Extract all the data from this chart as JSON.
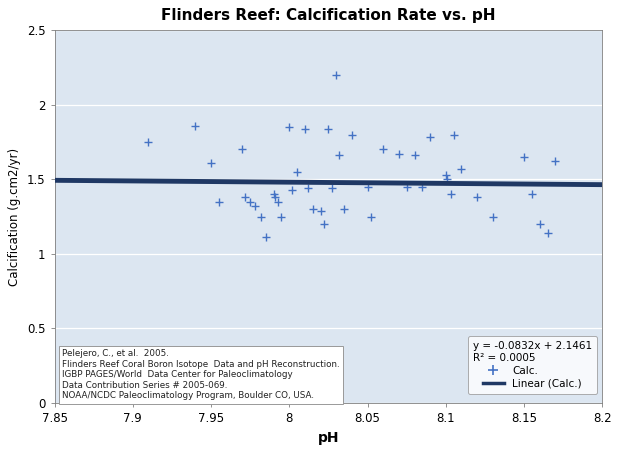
{
  "title": "Flinders Reef: Calcification Rate vs. pH",
  "xlabel": "pH",
  "ylabel": "Calcification (g.cm2/yr)",
  "xlim": [
    7.85,
    8.2
  ],
  "ylim": [
    0,
    2.5
  ],
  "yticks": [
    0,
    0.5,
    1.0,
    1.5,
    2.0,
    2.5
  ],
  "xticks": [
    7.85,
    7.9,
    7.95,
    8.0,
    8.05,
    8.1,
    8.15,
    8.2
  ],
  "scatter_color": "#4472C4",
  "line_color": "#1F3864",
  "scatter_x": [
    7.91,
    7.94,
    7.95,
    7.955,
    7.97,
    7.972,
    7.975,
    7.978,
    7.982,
    7.985,
    7.99,
    7.991,
    7.993,
    7.995,
    8.0,
    8.002,
    8.005,
    8.01,
    8.012,
    8.015,
    8.02,
    8.022,
    8.025,
    8.027,
    8.03,
    8.032,
    8.035,
    8.04,
    8.05,
    8.052,
    8.06,
    8.07,
    8.075,
    8.08,
    8.085,
    8.09,
    8.1,
    8.101,
    8.103,
    8.105,
    8.11,
    8.12,
    8.13,
    8.15,
    8.155,
    8.16,
    8.165,
    8.17
  ],
  "scatter_y": [
    1.75,
    1.86,
    1.61,
    1.35,
    1.7,
    1.38,
    1.35,
    1.32,
    1.25,
    1.11,
    1.4,
    1.38,
    1.35,
    1.25,
    1.85,
    1.43,
    1.55,
    1.84,
    1.44,
    1.3,
    1.29,
    1.2,
    1.84,
    1.44,
    2.2,
    1.66,
    1.3,
    1.8,
    1.45,
    1.25,
    1.7,
    1.67,
    1.45,
    1.66,
    1.45,
    1.78,
    1.53,
    1.5,
    1.4,
    1.8,
    1.57,
    1.38,
    1.25,
    1.65,
    1.4,
    1.2,
    1.14,
    1.62
  ],
  "line_x": [
    7.85,
    8.2
  ],
  "slope": -0.0832,
  "intercept": 2.1461,
  "equation_text": "y = -0.0832x + 2.1461",
  "r2_text": "R² = 0.0005",
  "citation_line1": "Pelejero, C., et al.  2005.",
  "citation_line2": "Flinders Reef Coral Boron Isotope  Data and pH Reconstruction.",
  "citation_line3": "IGBP PAGES/World  Data Center for Paleoclimatology",
  "citation_line4": "Data Contribution Series # 2005-069.",
  "citation_line5": "NOAA/NCDC Paleoclimatology Program, Boulder CO, USA.",
  "legend_label_scatter": "Calc.",
  "legend_label_line": "Linear (Calc.)",
  "plot_bg": "#DCE6F1",
  "figure_bg": "#FFFFFF",
  "grid_color": "#FFFFFF",
  "spine_color": "#7F7F7F"
}
